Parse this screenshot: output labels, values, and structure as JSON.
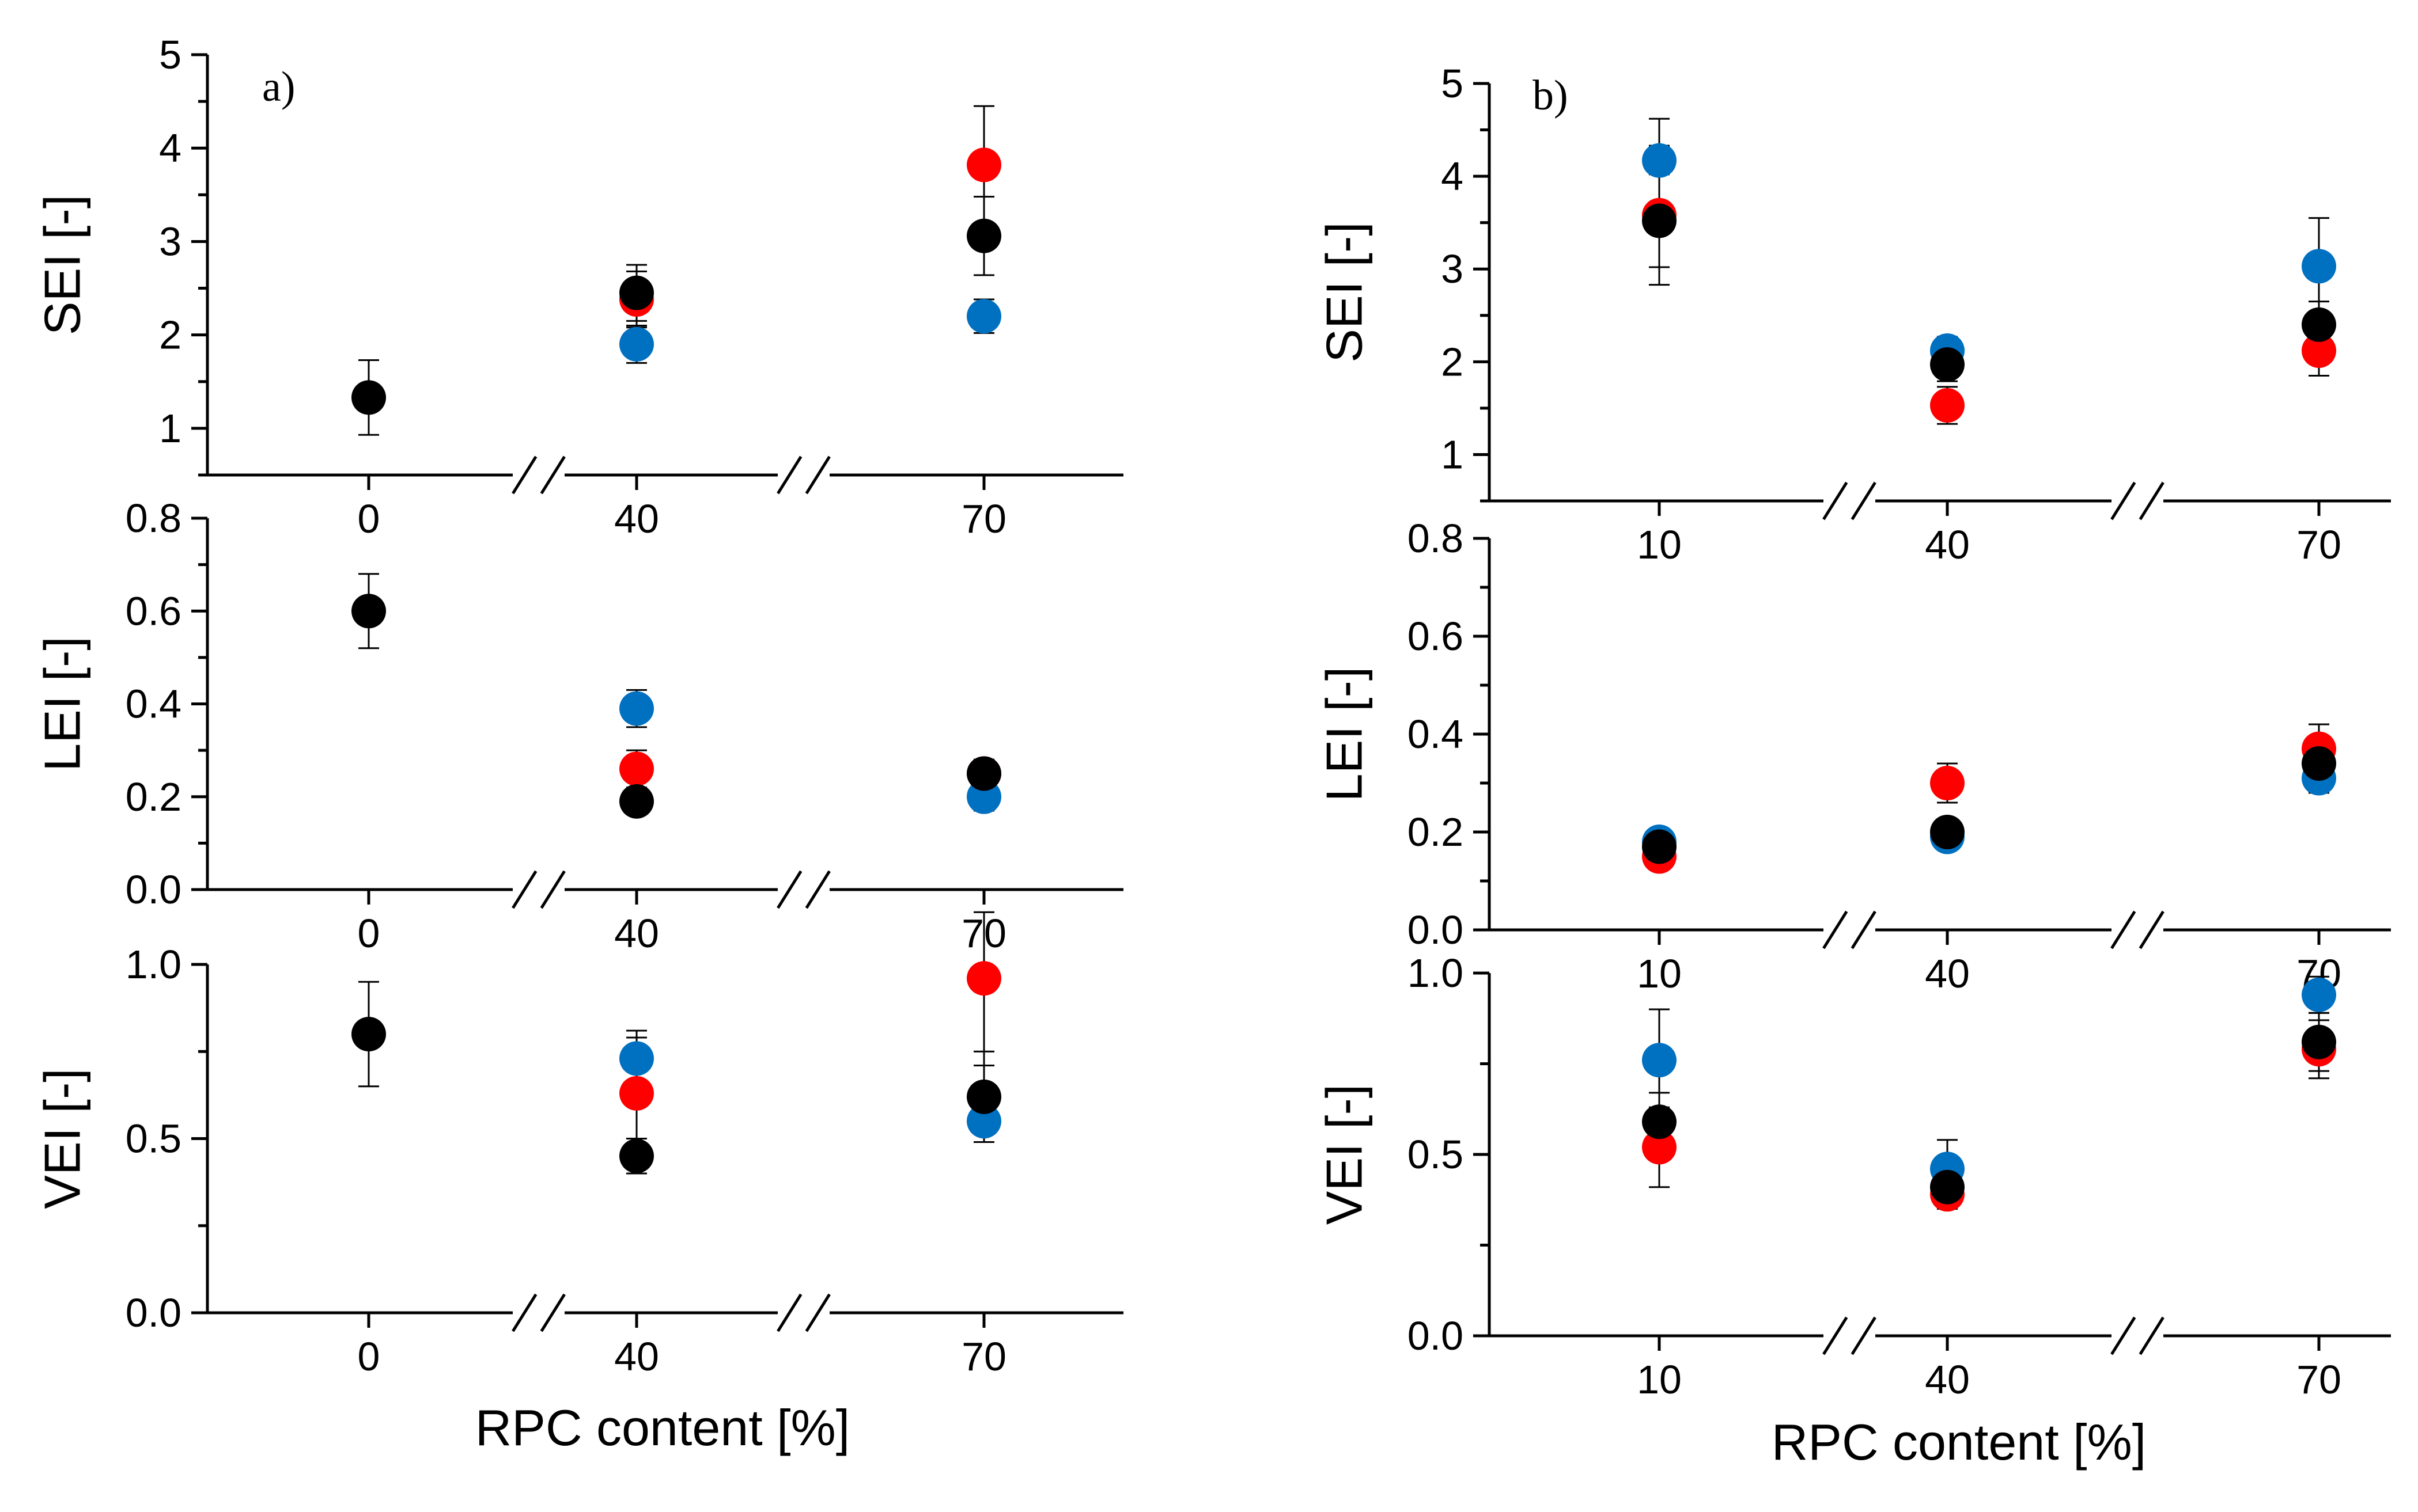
{
  "figure": {
    "colors": {
      "black": "#000000",
      "red": "#ff0000",
      "blue": "#0070c0"
    }
  },
  "chart_data": [
    {
      "id": "a-sei",
      "type": "scatter",
      "panel_label": "a)",
      "ylabel": "SEI [-]",
      "xlabel": "",
      "categories": [
        "0",
        "40",
        "70"
      ],
      "ylim": [
        0.5,
        5
      ],
      "yticks": [
        "1",
        "2",
        "3",
        "4",
        "5"
      ],
      "series": [
        {
          "name": "black",
          "color": "#000000",
          "points": [
            {
              "x": "0",
              "y": 1.33,
              "err": 0.4
            },
            {
              "x": "40",
              "y": 2.45,
              "err": 0.3
            },
            {
              "x": "70",
              "y": 3.06,
              "err": 0.42
            }
          ]
        },
        {
          "name": "red",
          "color": "#ff0000",
          "points": [
            {
              "x": "40",
              "y": 2.38,
              "err": 0.3
            },
            {
              "x": "70",
              "y": 3.82,
              "err": 0.63
            }
          ]
        },
        {
          "name": "blue",
          "color": "#0070c0",
          "points": [
            {
              "x": "40",
              "y": 1.9,
              "err": 0.2
            },
            {
              "x": "70",
              "y": 2.2,
              "err": 0.18
            }
          ]
        }
      ]
    },
    {
      "id": "a-lei",
      "type": "scatter",
      "panel_label": "",
      "ylabel": "LEI [-]",
      "xlabel": "",
      "categories": [
        "0",
        "40",
        "70"
      ],
      "ylim": [
        0,
        0.8
      ],
      "yticks": [
        "0.0",
        "0.2",
        "0.4",
        "0.6",
        "0.8"
      ],
      "series": [
        {
          "name": "black",
          "color": "#000000",
          "points": [
            {
              "x": "0",
              "y": 0.6,
              "err": 0.08
            },
            {
              "x": "40",
              "y": 0.19,
              "err": 0.02
            },
            {
              "x": "70",
              "y": 0.25,
              "err": 0.03
            }
          ]
        },
        {
          "name": "red",
          "color": "#ff0000",
          "points": [
            {
              "x": "40",
              "y": 0.26,
              "err": 0.04
            },
            {
              "x": "70",
              "y": 0.25,
              "err": 0.03
            }
          ]
        },
        {
          "name": "blue",
          "color": "#0070c0",
          "points": [
            {
              "x": "40",
              "y": 0.39,
              "err": 0.04
            },
            {
              "x": "70",
              "y": 0.2,
              "err": 0.03
            }
          ]
        }
      ]
    },
    {
      "id": "a-vei",
      "type": "scatter",
      "panel_label": "",
      "ylabel": "VEI [-]",
      "xlabel": "RPC content [%]",
      "categories": [
        "0",
        "40",
        "70"
      ],
      "ylim": [
        0,
        1
      ],
      "yticks": [
        "0.0",
        "0.5",
        "1.0"
      ],
      "series": [
        {
          "name": "black",
          "color": "#000000",
          "points": [
            {
              "x": "0",
              "y": 0.8,
              "err": 0.15
            },
            {
              "x": "40",
              "y": 0.45,
              "err": 0.05
            },
            {
              "x": "70",
              "y": 0.62,
              "err": 0.13
            }
          ]
        },
        {
          "name": "red",
          "color": "#ff0000",
          "points": [
            {
              "x": "40",
              "y": 0.63,
              "err": 0.16
            },
            {
              "x": "70",
              "y": 0.96,
              "err": 0.25
            }
          ]
        },
        {
          "name": "blue",
          "color": "#0070c0",
          "points": [
            {
              "x": "40",
              "y": 0.73,
              "err": 0.08
            },
            {
              "x": "70",
              "y": 0.55,
              "err": 0.06
            }
          ]
        }
      ]
    },
    {
      "id": "b-sei",
      "type": "scatter",
      "panel_label": "b)",
      "ylabel": "SEI [-]",
      "xlabel": "",
      "categories": [
        "10",
        "40",
        "70"
      ],
      "ylim": [
        0.5,
        5
      ],
      "yticks": [
        "1",
        "2",
        "3",
        "4",
        "5"
      ],
      "series": [
        {
          "name": "black",
          "color": "#000000",
          "points": [
            {
              "x": "10",
              "y": 3.52,
              "err": 0.5
            },
            {
              "x": "40",
              "y": 1.97,
              "err": 0.18
            },
            {
              "x": "70",
              "y": 2.4,
              "err": 0.25
            }
          ]
        },
        {
          "name": "red",
          "color": "#ff0000",
          "points": [
            {
              "x": "10",
              "y": 3.58,
              "err": 0.75
            },
            {
              "x": "40",
              "y": 1.53,
              "err": 0.2
            },
            {
              "x": "70",
              "y": 2.12,
              "err": 0.27
            }
          ]
        },
        {
          "name": "blue",
          "color": "#0070c0",
          "points": [
            {
              "x": "10",
              "y": 4.17,
              "err": 0.45
            },
            {
              "x": "40",
              "y": 2.12,
              "err": 0.15
            },
            {
              "x": "70",
              "y": 3.03,
              "err": 0.52
            }
          ]
        }
      ]
    },
    {
      "id": "b-lei",
      "type": "scatter",
      "panel_label": "",
      "ylabel": "LEI [-]",
      "xlabel": "",
      "categories": [
        "10",
        "40",
        "70"
      ],
      "ylim": [
        0,
        0.8
      ],
      "yticks": [
        "0.0",
        "0.2",
        "0.4",
        "0.6",
        "0.8"
      ],
      "series": [
        {
          "name": "black",
          "color": "#000000",
          "points": [
            {
              "x": "10",
              "y": 0.17,
              "err": 0.02
            },
            {
              "x": "40",
              "y": 0.2,
              "err": 0.02
            },
            {
              "x": "70",
              "y": 0.34,
              "err": 0.03
            }
          ]
        },
        {
          "name": "red",
          "color": "#ff0000",
          "points": [
            {
              "x": "10",
              "y": 0.15,
              "err": 0.02
            },
            {
              "x": "40",
              "y": 0.3,
              "err": 0.04
            },
            {
              "x": "70",
              "y": 0.37,
              "err": 0.05
            }
          ]
        },
        {
          "name": "blue",
          "color": "#0070c0",
          "points": [
            {
              "x": "10",
              "y": 0.18,
              "err": 0.02
            },
            {
              "x": "40",
              "y": 0.19,
              "err": 0.02
            },
            {
              "x": "70",
              "y": 0.31,
              "err": 0.03
            }
          ]
        }
      ]
    },
    {
      "id": "b-vei",
      "type": "scatter",
      "panel_label": "",
      "ylabel": "VEI [-]",
      "xlabel": "RPC content [%]",
      "categories": [
        "10",
        "40",
        "70"
      ],
      "ylim": [
        0,
        1
      ],
      "yticks": [
        "0.0",
        "0.5",
        "1.0"
      ],
      "series": [
        {
          "name": "black",
          "color": "#000000",
          "points": [
            {
              "x": "10",
              "y": 0.59,
              "err": 0.08
            },
            {
              "x": "40",
              "y": 0.41,
              "err": 0.04
            },
            {
              "x": "70",
              "y": 0.81,
              "err": 0.08
            }
          ]
        },
        {
          "name": "red",
          "color": "#ff0000",
          "points": [
            {
              "x": "10",
              "y": 0.52,
              "err": 0.11
            },
            {
              "x": "40",
              "y": 0.39,
              "err": 0.04
            },
            {
              "x": "70",
              "y": 0.79,
              "err": 0.08
            }
          ]
        },
        {
          "name": "blue",
          "color": "#0070c0",
          "points": [
            {
              "x": "10",
              "y": 0.76,
              "err": 0.14
            },
            {
              "x": "40",
              "y": 0.46,
              "err": 0.08
            },
            {
              "x": "70",
              "y": 0.94,
              "err": 0.05
            }
          ]
        }
      ]
    }
  ]
}
